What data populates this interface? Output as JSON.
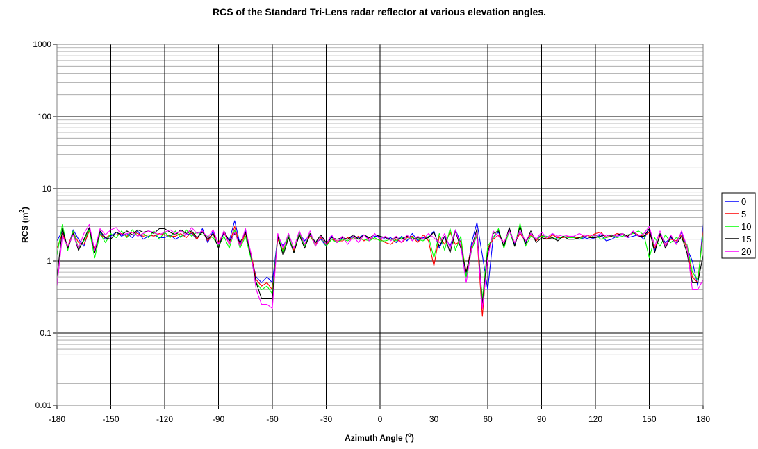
{
  "chart_data": {
    "type": "line",
    "title": "RCS of the Standard Tri-Lens radar reflector at various elevation angles.",
    "xlabel": {
      "text": "Azimuth Angle (",
      "sup": "o",
      "suffix": ")"
    },
    "ylabel": {
      "text": "RCS (m",
      "sup": "2",
      "suffix": ")"
    },
    "x_scale": "linear",
    "y_scale": "log",
    "xlim": [
      -180,
      180
    ],
    "ylim": [
      0.01,
      1000
    ],
    "x_ticks": [
      "-180",
      "-150",
      "-120",
      "-90",
      "-60",
      "-30",
      "0",
      "30",
      "60",
      "90",
      "120",
      "150",
      "180"
    ],
    "y_ticks": [
      "0.01",
      "0.1",
      "1",
      "10",
      "100",
      "1000"
    ],
    "grid": true,
    "legend_position": "right",
    "series": [
      {
        "name": "0",
        "color": "#0000ff",
        "x": [
          -180,
          -177,
          -174,
          -171,
          -168,
          -165,
          -162,
          -159,
          -156,
          -153,
          -150,
          -147,
          -144,
          -141,
          -138,
          -135,
          -132,
          -129,
          -126,
          -123,
          -120,
          -117,
          -114,
          -111,
          -108,
          -105,
          -102,
          -99,
          -96,
          -93,
          -90,
          -87,
          -84,
          -81,
          -78,
          -75,
          -72,
          -69,
          -66,
          -63,
          -60,
          -57,
          -54,
          -51,
          -48,
          -45,
          -42,
          -39,
          -36,
          -33,
          -30,
          -27,
          -24,
          -21,
          -18,
          -15,
          -12,
          -9,
          -6,
          -3,
          0,
          3,
          6,
          9,
          12,
          15,
          18,
          21,
          24,
          27,
          30,
          33,
          36,
          39,
          42,
          45,
          48,
          51,
          54,
          57,
          60,
          63,
          66,
          69,
          72,
          75,
          78,
          81,
          84,
          87,
          90,
          93,
          96,
          99,
          102,
          105,
          108,
          111,
          114,
          117,
          120,
          123,
          126,
          129,
          132,
          135,
          138,
          141,
          144,
          147,
          150,
          153,
          156,
          159,
          162,
          165,
          168,
          171,
          174,
          177,
          180
        ],
        "y": [
          1.9,
          2.6,
          1.5,
          2.7,
          2.0,
          1.6,
          2.8,
          1.4,
          2.5,
          2.0,
          2.2,
          2.5,
          2.2,
          2.4,
          2.1,
          2.6,
          2.0,
          2.2,
          2.3,
          2.1,
          2.1,
          2.3,
          2.0,
          2.2,
          2.3,
          2.4,
          2.0,
          2.8,
          1.8,
          2.6,
          1.7,
          2.4,
          1.9,
          3.6,
          1.7,
          2.6,
          1.2,
          0.6,
          0.5,
          0.6,
          0.5,
          2.2,
          1.6,
          2.2,
          1.3,
          2.4,
          1.9,
          2.3,
          1.8,
          2.0,
          1.6,
          2.2,
          1.8,
          2.1,
          2.0,
          2.2,
          2.1,
          2.3,
          2.0,
          2.2,
          2.2,
          2.0,
          2.1,
          1.8,
          2.2,
          1.9,
          2.4,
          1.9,
          2.1,
          2.1,
          2.6,
          1.5,
          2.2,
          1.6,
          2.7,
          1.8,
          0.6,
          1.8,
          3.4,
          1.2,
          0.4,
          2.1,
          2.5,
          1.6,
          2.8,
          1.7,
          2.6,
          1.8,
          2.4,
          2.0,
          2.3,
          2.1,
          2.4,
          2.0,
          2.2,
          2.1,
          2.2,
          2.0,
          2.1,
          2.0,
          2.1,
          2.3,
          1.9,
          2.0,
          2.2,
          2.3,
          2.1,
          2.2,
          2.3,
          2.0,
          2.8,
          1.4,
          2.3,
          1.8,
          2.1,
          1.8,
          2.5,
          1.5,
          1.0,
          0.45,
          3.2
        ]
      },
      {
        "name": "5",
        "color": "#ff0000",
        "x": [
          -180,
          -177,
          -174,
          -171,
          -168,
          -165,
          -162,
          -159,
          -156,
          -153,
          -150,
          -147,
          -144,
          -141,
          -138,
          -135,
          -132,
          -129,
          -126,
          -123,
          -120,
          -117,
          -114,
          -111,
          -108,
          -105,
          -102,
          -99,
          -96,
          -93,
          -90,
          -87,
          -84,
          -81,
          -78,
          -75,
          -72,
          -69,
          -66,
          -63,
          -60,
          -57,
          -54,
          -51,
          -48,
          -45,
          -42,
          -39,
          -36,
          -33,
          -30,
          -27,
          -24,
          -21,
          -18,
          -15,
          -12,
          -9,
          -6,
          -3,
          0,
          3,
          6,
          9,
          12,
          15,
          18,
          21,
          24,
          27,
          30,
          33,
          36,
          39,
          42,
          45,
          48,
          51,
          54,
          57,
          60,
          63,
          66,
          69,
          72,
          75,
          78,
          81,
          84,
          87,
          90,
          93,
          96,
          99,
          102,
          105,
          108,
          111,
          114,
          117,
          120,
          123,
          126,
          129,
          132,
          135,
          138,
          141,
          144,
          147,
          150,
          153,
          156,
          159,
          162,
          165,
          168,
          171,
          174,
          177,
          180
        ],
        "y": [
          1.5,
          2.4,
          1.6,
          2.5,
          1.8,
          1.7,
          2.6,
          1.5,
          2.3,
          2.1,
          2.3,
          2.3,
          2.4,
          2.2,
          2.5,
          2.4,
          2.2,
          2.3,
          2.2,
          2.4,
          2.3,
          2.2,
          2.2,
          2.4,
          2.1,
          2.5,
          2.0,
          2.6,
          1.9,
          2.4,
          1.8,
          2.5,
          1.7,
          3.0,
          1.6,
          2.4,
          1.3,
          0.55,
          0.45,
          0.5,
          0.4,
          2.0,
          1.4,
          2.1,
          1.4,
          2.3,
          1.7,
          2.2,
          1.7,
          2.1,
          1.7,
          2.0,
          1.9,
          1.9,
          2.1,
          2.0,
          2.2,
          1.9,
          2.1,
          2.0,
          2.0,
          1.8,
          1.7,
          2.0,
          1.8,
          2.1,
          2.2,
          1.8,
          2.3,
          1.9,
          0.85,
          2.2,
          1.7,
          2.5,
          1.7,
          1.9,
          0.7,
          1.6,
          2.2,
          0.17,
          1.5,
          2.0,
          2.3,
          1.8,
          2.6,
          1.8,
          2.4,
          1.9,
          2.3,
          1.9,
          2.3,
          2.0,
          2.3,
          2.1,
          2.1,
          2.2,
          2.1,
          2.1,
          2.3,
          2.2,
          2.4,
          2.5,
          2.1,
          2.2,
          2.4,
          2.3,
          2.2,
          2.5,
          2.3,
          2.2,
          2.5,
          1.5,
          2.2,
          1.7,
          2.0,
          1.9,
          2.3,
          1.5,
          0.6,
          0.5,
          2.6
        ]
      },
      {
        "name": "10",
        "color": "#00ff00",
        "x": [
          -180,
          -177,
          -174,
          -171,
          -168,
          -165,
          -162,
          -159,
          -156,
          -153,
          -150,
          -147,
          -144,
          -141,
          -138,
          -135,
          -132,
          -129,
          -126,
          -123,
          -120,
          -117,
          -114,
          -111,
          -108,
          -105,
          -102,
          -99,
          -96,
          -93,
          -90,
          -87,
          -84,
          -81,
          -78,
          -75,
          -72,
          -69,
          -66,
          -63,
          -60,
          -57,
          -54,
          -51,
          -48,
          -45,
          -42,
          -39,
          -36,
          -33,
          -30,
          -27,
          -24,
          -21,
          -18,
          -15,
          -12,
          -9,
          -6,
          -3,
          0,
          3,
          6,
          9,
          12,
          15,
          18,
          21,
          24,
          27,
          30,
          33,
          36,
          39,
          42,
          45,
          48,
          51,
          54,
          57,
          60,
          63,
          66,
          69,
          72,
          75,
          78,
          81,
          84,
          87,
          90,
          93,
          96,
          99,
          102,
          105,
          108,
          111,
          114,
          117,
          120,
          123,
          126,
          129,
          132,
          135,
          138,
          141,
          144,
          147,
          150,
          153,
          156,
          159,
          162,
          165,
          168,
          171,
          174,
          177,
          180
        ],
        "y": [
          1.2,
          3.2,
          1.4,
          2.6,
          1.5,
          1.9,
          2.7,
          1.1,
          2.4,
          1.8,
          2.4,
          2.1,
          2.6,
          2.1,
          2.7,
          2.2,
          2.4,
          2.1,
          2.6,
          2.0,
          2.5,
          2.1,
          2.6,
          2.1,
          2.7,
          2.2,
          2.5,
          2.3,
          2.2,
          2.1,
          1.6,
          2.2,
          1.5,
          2.7,
          1.5,
          2.2,
          1.1,
          0.5,
          0.4,
          0.45,
          0.35,
          2.3,
          1.3,
          2.3,
          1.3,
          2.5,
          1.6,
          2.4,
          1.6,
          2.2,
          1.6,
          2.0,
          1.8,
          2.0,
          1.9,
          2.1,
          2.0,
          2.0,
          1.9,
          2.1,
          1.9,
          1.9,
          2.0,
          1.9,
          2.1,
          2.0,
          2.1,
          2.0,
          1.9,
          2.2,
          1.1,
          2.4,
          1.4,
          2.8,
          1.4,
          2.2,
          0.6,
          1.4,
          2.3,
          0.3,
          1.6,
          2.1,
          2.8,
          1.5,
          2.6,
          1.6,
          3.3,
          1.6,
          2.2,
          2.0,
          2.2,
          2.2,
          2.1,
          2.0,
          2.2,
          2.1,
          2.1,
          2.0,
          2.2,
          2.1,
          2.3,
          2.0,
          2.1,
          2.3,
          2.1,
          2.2,
          2.3,
          2.4,
          2.6,
          2.3,
          1.1,
          2.1,
          1.6,
          2.3,
          1.8,
          2.1,
          2.0,
          1.7,
          0.7,
          0.55,
          2.3
        ]
      },
      {
        "name": "15",
        "color": "#000000",
        "x": [
          -180,
          -177,
          -174,
          -171,
          -168,
          -165,
          -162,
          -159,
          -156,
          -153,
          -150,
          -147,
          -144,
          -141,
          -138,
          -135,
          -132,
          -129,
          -126,
          -123,
          -120,
          -117,
          -114,
          -111,
          -108,
          -105,
          -102,
          -99,
          -96,
          -93,
          -90,
          -87,
          -84,
          -81,
          -78,
          -75,
          -72,
          -69,
          -66,
          -63,
          -60,
          -57,
          -54,
          -51,
          -48,
          -45,
          -42,
          -39,
          -36,
          -33,
          -30,
          -27,
          -24,
          -21,
          -18,
          -15,
          -12,
          -9,
          -6,
          -3,
          0,
          3,
          6,
          9,
          12,
          15,
          18,
          21,
          24,
          27,
          30,
          33,
          36,
          39,
          42,
          45,
          48,
          51,
          54,
          57,
          60,
          63,
          66,
          69,
          72,
          75,
          78,
          81,
          84,
          87,
          90,
          93,
          96,
          99,
          102,
          105,
          108,
          111,
          114,
          117,
          120,
          123,
          126,
          129,
          132,
          135,
          138,
          141,
          144,
          147,
          150,
          153,
          156,
          159,
          162,
          165,
          168,
          171,
          174,
          177,
          180
        ],
        "y": [
          0.6,
          2.8,
          1.5,
          2.4,
          1.4,
          2.0,
          2.9,
          1.3,
          2.6,
          2.1,
          2.0,
          2.5,
          2.3,
          2.6,
          2.3,
          2.7,
          2.5,
          2.6,
          2.4,
          2.8,
          2.8,
          2.5,
          2.3,
          2.7,
          2.4,
          2.6,
          2.1,
          2.5,
          2.0,
          2.4,
          1.5,
          2.6,
          1.9,
          2.4,
          1.8,
          2.5,
          1.2,
          0.5,
          0.3,
          0.3,
          0.3,
          2.2,
          1.2,
          2.1,
          1.3,
          2.3,
          1.5,
          2.4,
          1.8,
          2.3,
          1.8,
          2.1,
          2.0,
          2.1,
          2.0,
          2.3,
          2.0,
          2.3,
          2.1,
          2.3,
          2.2,
          2.1,
          2.0,
          2.1,
          2.0,
          2.2,
          2.0,
          2.1,
          2.0,
          2.1,
          2.5,
          1.6,
          2.2,
          1.3,
          2.6,
          1.5,
          0.7,
          1.5,
          2.8,
          0.25,
          1.3,
          2.4,
          2.6,
          1.6,
          2.9,
          1.6,
          3.0,
          1.7,
          2.6,
          1.8,
          2.1,
          2.0,
          2.1,
          1.9,
          2.2,
          2.0,
          2.0,
          2.1,
          2.2,
          2.1,
          2.1,
          2.2,
          2.3,
          2.2,
          2.3,
          2.4,
          2.2,
          2.5,
          2.2,
          2.2,
          2.8,
          1.3,
          2.4,
          1.5,
          2.2,
          1.7,
          2.2,
          1.3,
          0.5,
          0.5,
          1.2
        ]
      },
      {
        "name": "20",
        "color": "#ff00ff",
        "x": [
          -180,
          -177,
          -174,
          -171,
          -168,
          -165,
          -162,
          -159,
          -156,
          -153,
          -150,
          -147,
          -144,
          -141,
          -138,
          -135,
          -132,
          -129,
          -126,
          -123,
          -120,
          -117,
          -114,
          -111,
          -108,
          -105,
          -102,
          -99,
          -96,
          -93,
          -90,
          -87,
          -84,
          -81,
          -78,
          -75,
          -72,
          -69,
          -66,
          -63,
          -60,
          -57,
          -54,
          -51,
          -48,
          -45,
          -42,
          -39,
          -36,
          -33,
          -30,
          -27,
          -24,
          -21,
          -18,
          -15,
          -12,
          -9,
          -6,
          -3,
          0,
          3,
          6,
          9,
          12,
          15,
          18,
          21,
          24,
          27,
          30,
          33,
          36,
          39,
          42,
          45,
          48,
          51,
          54,
          57,
          60,
          63,
          66,
          69,
          72,
          75,
          78,
          81,
          84,
          87,
          90,
          93,
          96,
          99,
          102,
          105,
          108,
          111,
          114,
          117,
          120,
          123,
          126,
          129,
          132,
          135,
          138,
          141,
          144,
          147,
          150,
          153,
          156,
          159,
          162,
          165,
          168,
          171,
          174,
          177,
          180
        ],
        "y": [
          0.45,
          2.2,
          1.6,
          2.3,
          1.5,
          2.4,
          3.2,
          1.4,
          2.8,
          2.3,
          2.7,
          2.9,
          2.3,
          2.4,
          2.5,
          2.2,
          2.4,
          2.6,
          2.5,
          2.3,
          2.5,
          2.7,
          2.4,
          2.6,
          2.3,
          2.9,
          2.4,
          2.6,
          2.1,
          2.7,
          1.7,
          2.6,
          1.7,
          2.5,
          1.6,
          2.8,
          1.3,
          0.4,
          0.25,
          0.25,
          0.22,
          2.4,
          1.5,
          2.4,
          1.5,
          2.6,
          1.7,
          2.6,
          1.6,
          2.2,
          1.7,
          2.3,
          1.8,
          2.2,
          1.7,
          2.2,
          1.8,
          2.3,
          1.9,
          2.4,
          2.0,
          2.2,
          1.9,
          2.2,
          1.8,
          2.3,
          1.9,
          2.2,
          2.0,
          2.4,
          2.1,
          1.8,
          2.4,
          1.5,
          2.7,
          1.6,
          0.5,
          1.5,
          2.5,
          0.22,
          1.1,
          2.6,
          2.2,
          1.8,
          2.6,
          1.8,
          2.6,
          1.9,
          2.4,
          2.0,
          2.5,
          2.1,
          2.4,
          2.2,
          2.3,
          2.2,
          2.2,
          2.4,
          2.2,
          2.3,
          2.2,
          2.4,
          2.2,
          2.3,
          2.2,
          2.4,
          2.1,
          2.6,
          2.2,
          2.4,
          3.0,
          1.6,
          2.6,
          1.6,
          2.3,
          1.7,
          2.6,
          1.6,
          0.4,
          0.4,
          0.55
        ]
      }
    ]
  }
}
